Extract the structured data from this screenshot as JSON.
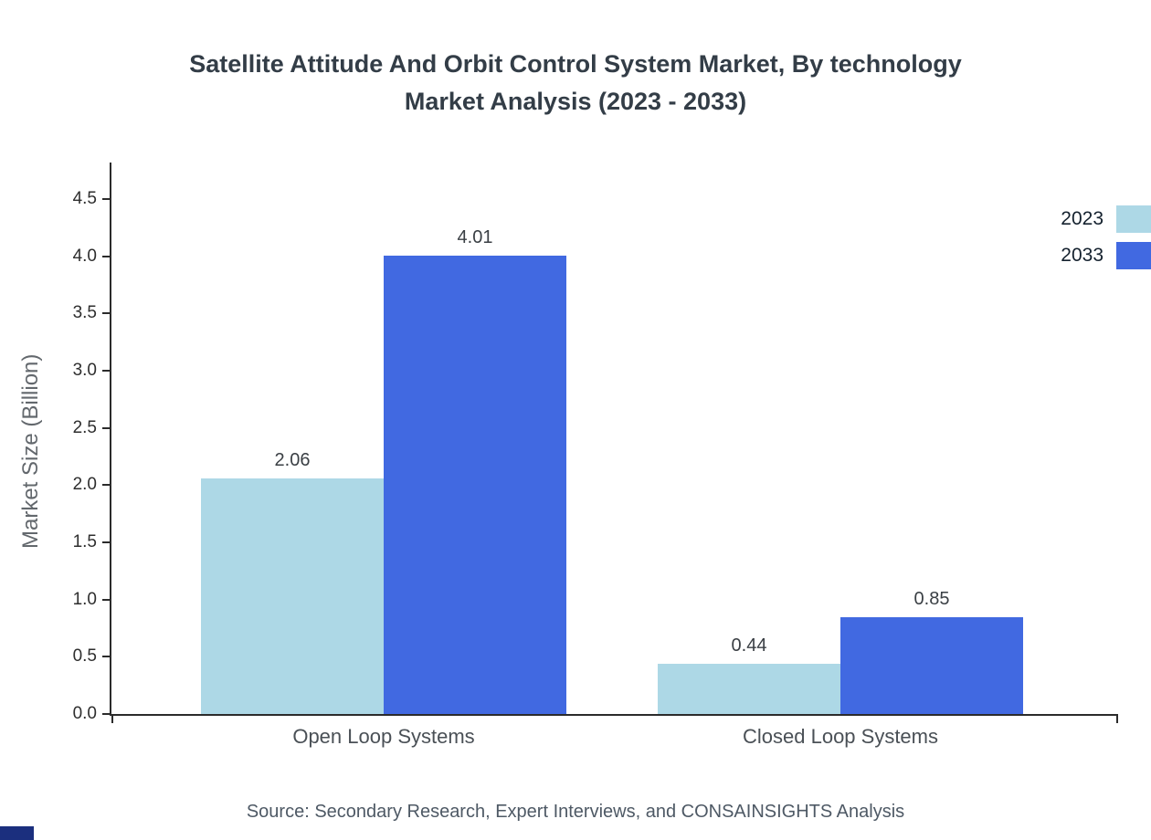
{
  "title": {
    "line1": "Satellite Attitude And Orbit Control System Market, By technology",
    "line2": "Market Analysis (2023 - 2033)"
  },
  "source": "Source: Secondary Research, Expert Interviews, and CONSAINSIGHTS Analysis",
  "colors": {
    "series_2023": "#ADD8E6",
    "series_2033": "#4169E1",
    "logo_fragment": "#1b2f7e"
  },
  "chart_data": {
    "type": "bar",
    "title": "Satellite Attitude And Orbit Control System Market, By technology Market Analysis (2023 - 2033)",
    "categories": [
      "Open Loop Systems",
      "Closed Loop Systems"
    ],
    "series": [
      {
        "name": "2023",
        "color": "#ADD8E6",
        "values": [
          2.06,
          0.44
        ]
      },
      {
        "name": "2033",
        "color": "#4169E1",
        "values": [
          4.01,
          0.85
        ]
      }
    ],
    "xlabel": "",
    "ylabel": "Market Size (Billion)",
    "ylim": [
      0,
      4.82
    ],
    "yticks": [
      0.0,
      0.5,
      1.0,
      1.5,
      2.0,
      2.5,
      3.0,
      3.5,
      4.0,
      4.5
    ],
    "grid": false,
    "legend_position": "top-right",
    "value_labels": true
  }
}
